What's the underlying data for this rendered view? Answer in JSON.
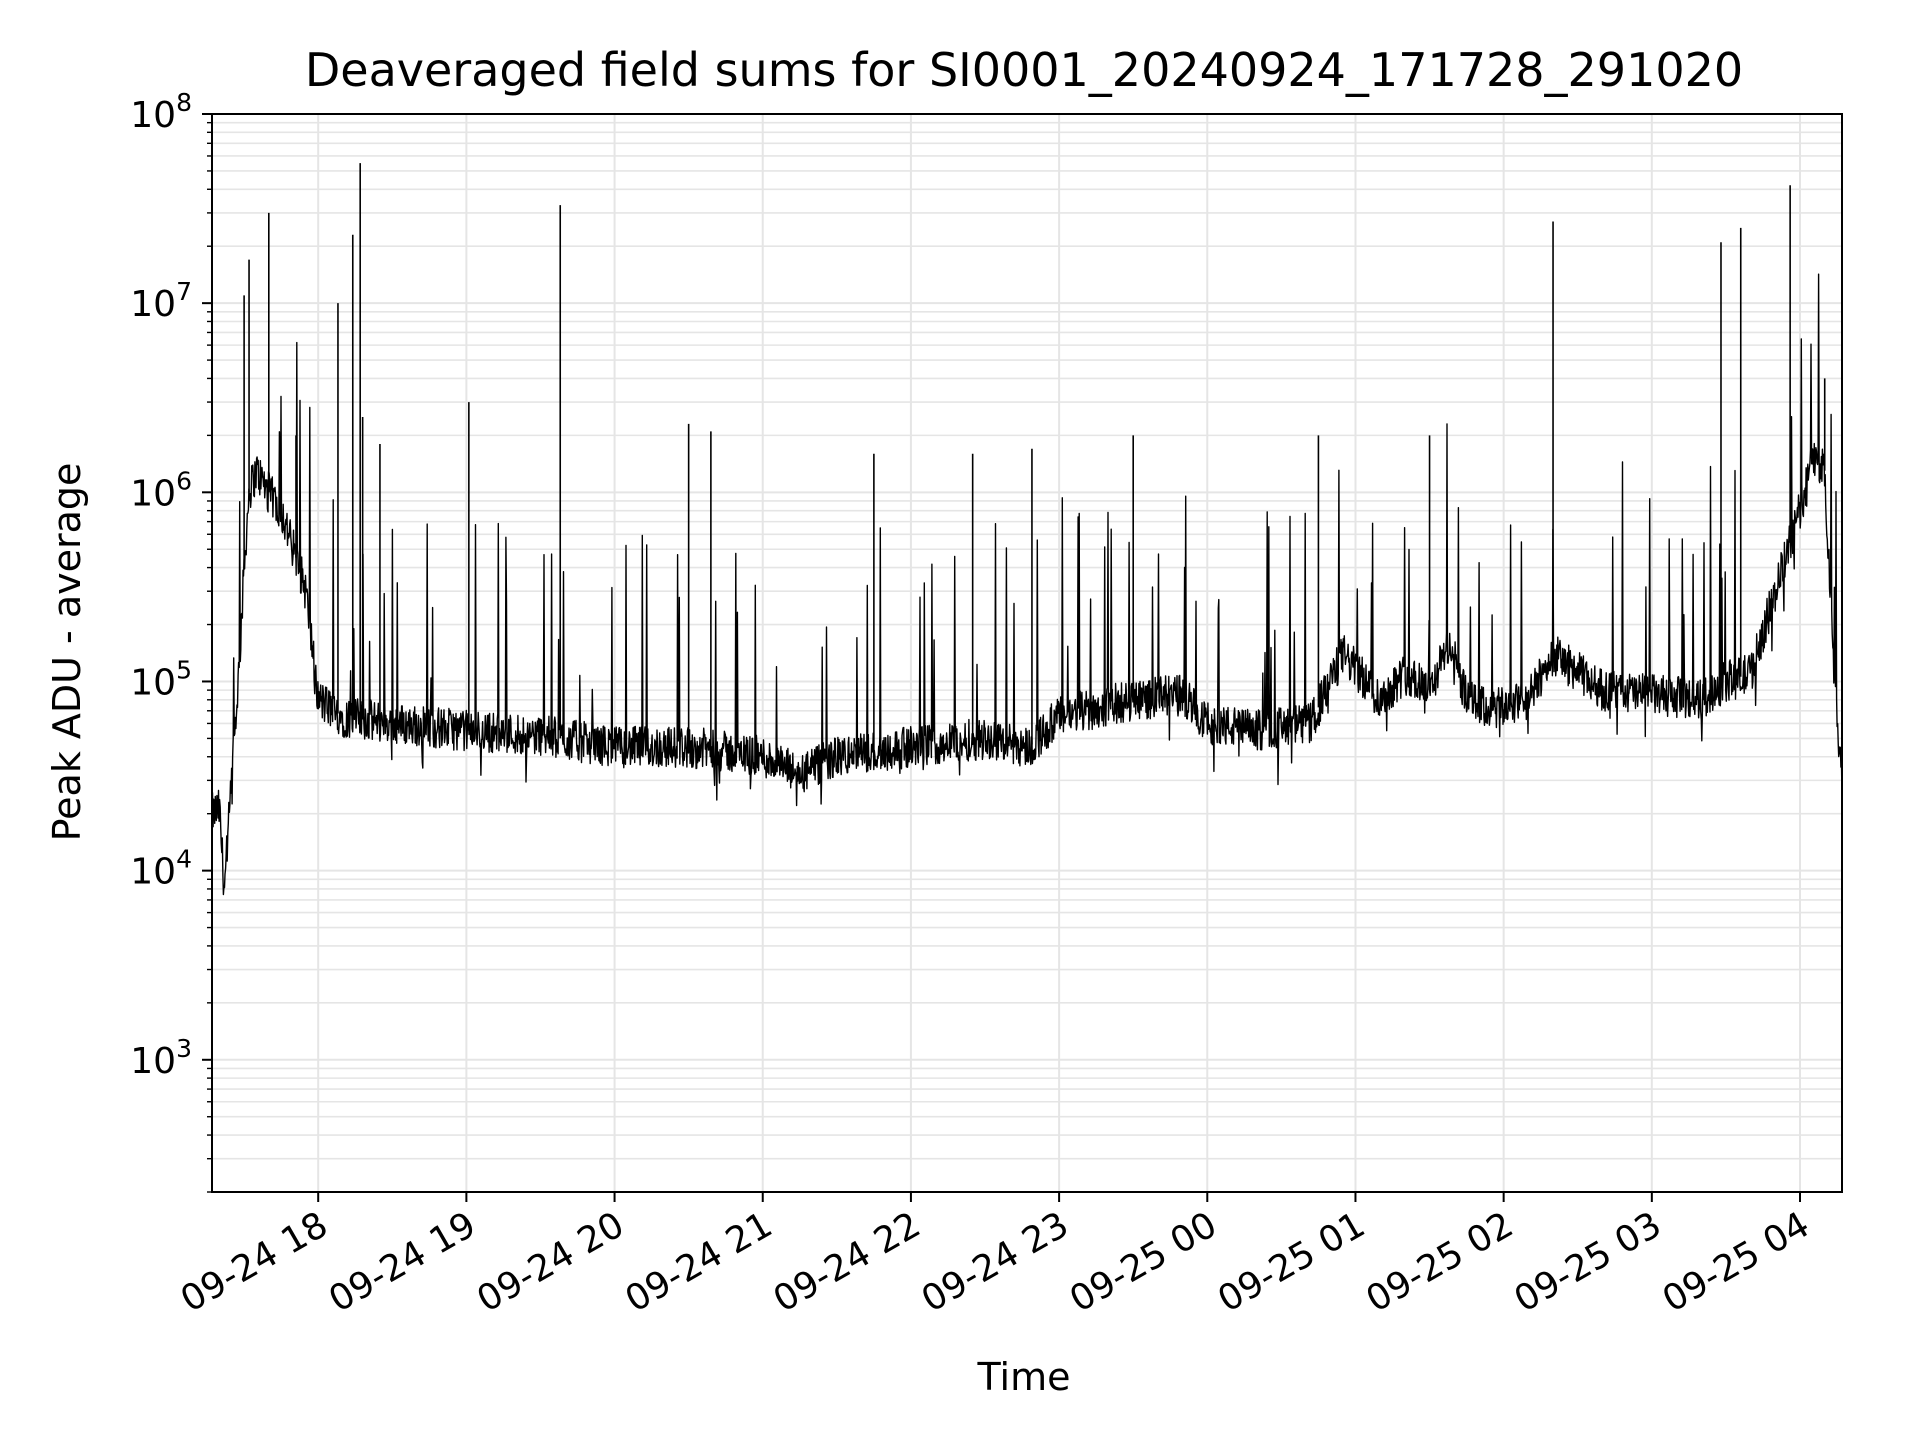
{
  "chart_data": {
    "type": "line",
    "title": "Deaveraged field sums for SI0001_20240924_171728_291020",
    "xlabel": "Time",
    "ylabel": "Peak ADU - average",
    "yscale": "log",
    "ylim": [
      200,
      100000000
    ],
    "xlim": [
      "2024-09-24 17:17",
      "2024-09-25 04:17"
    ],
    "grid": true,
    "line_color": "#000000",
    "grid_color": "#e5e5e5",
    "x_ticks": [
      "2024-09-24 18:00",
      "2024-09-24 19:00",
      "2024-09-24 20:00",
      "2024-09-24 21:00",
      "2024-09-24 22:00",
      "2024-09-24 23:00",
      "2024-09-25 00:00",
      "2024-09-25 01:00",
      "2024-09-25 02:00",
      "2024-09-25 03:00",
      "2024-09-25 04:00"
    ],
    "x_tick_labels": [
      "09-24 18",
      "09-24 19",
      "09-24 20",
      "09-24 21",
      "09-24 22",
      "09-24 23",
      "09-25 00",
      "09-25 01",
      "09-25 02",
      "09-25 03",
      "09-25 04"
    ],
    "y_tick_labels": [
      {
        "base": "10",
        "exp": "3",
        "value": 1000
      },
      {
        "base": "10",
        "exp": "4",
        "value": 10000
      },
      {
        "base": "10",
        "exp": "5",
        "value": 100000
      },
      {
        "base": "10",
        "exp": "6",
        "value": 1000000
      },
      {
        "base": "10",
        "exp": "7",
        "value": 10000000
      },
      {
        "base": "10",
        "exp": "8",
        "value": 100000000
      }
    ],
    "series": [
      {
        "x": [
          "2024-09-24 17:17",
          "2024-09-24 17:20",
          "2024-09-24 17:22",
          "2024-09-24 17:25",
          "2024-09-24 17:28",
          "2024-09-24 17:30",
          "2024-09-24 17:32",
          "2024-09-24 17:35",
          "2024-09-24 17:40",
          "2024-09-24 17:45",
          "2024-09-24 17:50",
          "2024-09-24 17:55",
          "2024-09-24 18:00",
          "2024-09-24 18:10",
          "2024-09-24 18:30",
          "2024-09-24 19:00",
          "2024-09-24 19:30",
          "2024-09-24 20:00",
          "2024-09-24 20:30",
          "2024-09-24 21:00",
          "2024-09-24 21:15",
          "2024-09-24 21:30",
          "2024-09-24 22:00",
          "2024-09-24 22:30",
          "2024-09-24 22:48",
          "2024-09-24 23:00",
          "2024-09-24 23:30",
          "2024-09-24 23:50",
          "2024-09-25 00:00",
          "2024-09-25 00:20",
          "2024-09-25 00:42",
          "2024-09-25 00:55",
          "2024-09-25 01:10",
          "2024-09-25 01:20",
          "2024-09-25 01:30",
          "2024-09-25 01:38",
          "2024-09-25 01:45",
          "2024-09-25 01:55",
          "2024-09-25 02:10",
          "2024-09-25 02:20",
          "2024-09-25 02:40",
          "2024-09-25 03:00",
          "2024-09-25 03:20",
          "2024-09-25 03:30",
          "2024-09-25 03:40",
          "2024-09-25 03:50",
          "2024-09-25 04:00",
          "2024-09-25 04:05",
          "2024-09-25 04:10",
          "2024-09-25 04:14",
          "2024-09-25 04:17"
        ],
        "y": [
          20000,
          21000,
          8000,
          30000,
          120000,
          400000,
          1000000,
          1300000,
          1000000,
          800000,
          500000,
          300000,
          80000,
          65000,
          60000,
          55000,
          52000,
          45000,
          45000,
          40000,
          32000,
          40000,
          45000,
          50000,
          45000,
          65000,
          80000,
          85000,
          60000,
          55000,
          60000,
          140000,
          80000,
          110000,
          90000,
          160000,
          80000,
          70000,
          80000,
          140000,
          90000,
          85000,
          80000,
          100000,
          110000,
          300000,
          800000,
          1500000,
          1300000,
          100000,
          30000
        ]
      }
    ],
    "spikes": [
      {
        "x": "2024-09-24 17:30",
        "y": 11000000
      },
      {
        "x": "2024-09-24 17:32",
        "y": 17000000
      },
      {
        "x": "2024-09-24 17:40",
        "y": 30000000
      },
      {
        "x": "2024-09-24 17:51",
        "y": 2000000
      },
      {
        "x": "2024-09-24 18:08",
        "y": 10000000
      },
      {
        "x": "2024-09-24 18:14",
        "y": 23000000
      },
      {
        "x": "2024-09-24 18:17",
        "y": 55000000
      },
      {
        "x": "2024-09-24 18:18",
        "y": 2500000
      },
      {
        "x": "2024-09-24 18:25",
        "y": 1800000
      },
      {
        "x": "2024-09-24 19:01",
        "y": 3000000
      },
      {
        "x": "2024-09-24 19:38",
        "y": 33000000
      },
      {
        "x": "2024-09-24 20:30",
        "y": 2300000
      },
      {
        "x": "2024-09-24 20:39",
        "y": 2100000
      },
      {
        "x": "2024-09-24 21:45",
        "y": 1600000
      },
      {
        "x": "2024-09-24 22:25",
        "y": 1600000
      },
      {
        "x": "2024-09-24 22:49",
        "y": 1700000
      },
      {
        "x": "2024-09-24 23:30",
        "y": 2000000
      },
      {
        "x": "2024-09-25 00:45",
        "y": 2000000
      },
      {
        "x": "2024-09-25 01:30",
        "y": 2000000
      },
      {
        "x": "2024-09-25 02:20",
        "y": 27000000
      },
      {
        "x": "2024-09-25 03:28",
        "y": 21000000
      },
      {
        "x": "2024-09-25 03:36",
        "y": 25000000
      },
      {
        "x": "2024-09-25 03:56",
        "y": 42000000
      },
      {
        "x": "2024-09-25 04:10",
        "y": 4000000
      }
    ]
  }
}
